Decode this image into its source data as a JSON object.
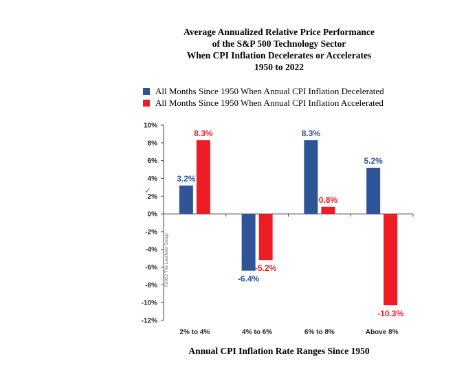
{
  "title_lines": [
    "Average Annualized Relative Price Performance",
    "of the S&P 500 Technology Sector",
    "When CPI Inflation Decelerates or Accelerates",
    "1950 to 2022"
  ],
  "legend": [
    {
      "label": "All Months Since 1950 When Annual CPI Inflation Decelerated",
      "color": "#2f5597"
    },
    {
      "label": "All Months Since 1950 When Annual CPI Inflation Accelerated",
      "color": "#ee1c25"
    }
  ],
  "x_axis_title": "Annual CPI Inflation Rate Ranges Since 1950",
  "copyright": "©2022 The Leuthold Group",
  "chart_data": {
    "type": "bar",
    "title": "Average Annualized Relative Price Performance of the S&P 500 Technology Sector When CPI Inflation Decelerates or Accelerates 1950 to 2022",
    "xlabel": "Annual CPI Inflation Rate Ranges Since 1950",
    "ylabel": "",
    "categories": [
      "2% to 4%",
      "4% to 6%",
      "6% to 8%",
      "Above 8%"
    ],
    "series": [
      {
        "name": "All Months Since 1950 When Annual CPI Inflation Decelerated",
        "color": "#2f5597",
        "label_color": "#2f5597",
        "values": [
          3.2,
          -6.4,
          8.3,
          5.2
        ],
        "labels": [
          "3.2%",
          "-6.4%",
          "8.3%",
          "5.2%"
        ]
      },
      {
        "name": "All Months Since 1950 When Annual CPI Inflation Accelerated",
        "color": "#ee1c25",
        "label_color": "#ee1c25",
        "values": [
          8.3,
          -5.2,
          0.8,
          -10.3
        ],
        "labels": [
          "8.3%",
          "-5.2%",
          "0.8%",
          "-10.3%"
        ]
      }
    ],
    "ylim": [
      -12,
      10
    ],
    "yticks": [
      10,
      8,
      6,
      4,
      2,
      0,
      -2,
      -4,
      -6,
      -8,
      -10,
      -12
    ],
    "ytick_labels": [
      "10%",
      "8%",
      "6%",
      "4%",
      "2%",
      "0%",
      "-2%",
      "-4%",
      "-6%",
      "-8%",
      "-10%",
      "-12%"
    ],
    "grid": false,
    "legend_position": "top"
  }
}
